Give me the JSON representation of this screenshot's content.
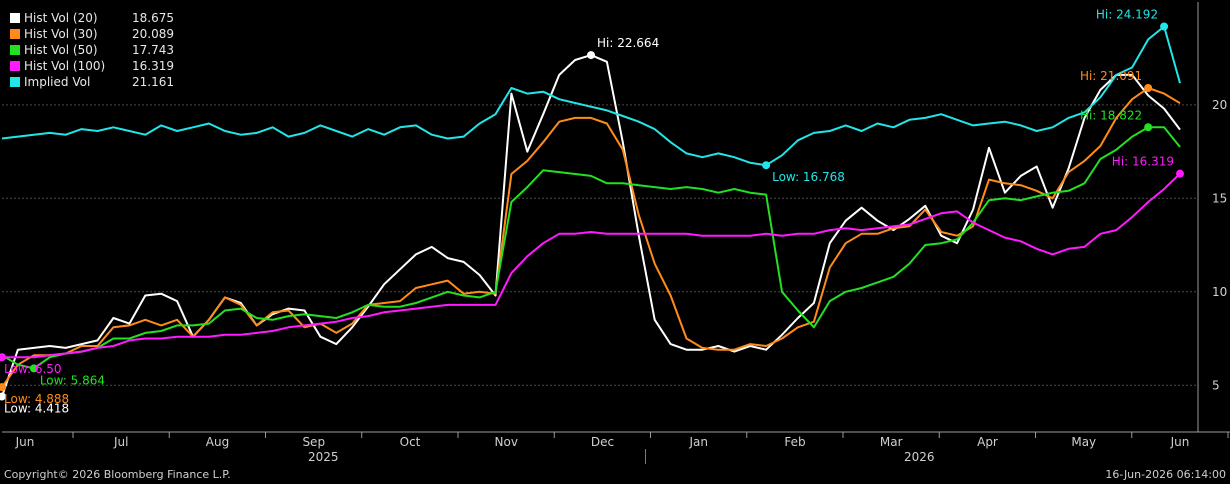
{
  "chart_data": {
    "type": "line",
    "x_ticks": [
      "Jun",
      "Jul",
      "Aug",
      "Sep",
      "Oct",
      "Nov",
      "Dec",
      "Jan",
      "Feb",
      "Mar",
      "Apr",
      "May",
      "Jun"
    ],
    "years": [
      "2025",
      "2026"
    ],
    "y_ticks": [
      5,
      10,
      15,
      20
    ],
    "ylim": [
      2.5,
      25.5
    ],
    "grid": "horizontal dashed",
    "legend_position": "top-left",
    "series": [
      {
        "name": "Hist Vol (20)",
        "last": "18.675",
        "color": "#ffffff",
        "values": [
          4.4,
          6.9,
          7.0,
          7.1,
          7.0,
          7.2,
          7.4,
          8.6,
          8.3,
          9.8,
          9.9,
          9.5,
          7.6,
          8.5,
          9.7,
          9.4,
          8.2,
          8.8,
          9.1,
          9.0,
          7.6,
          7.2,
          8.1,
          9.2,
          10.4,
          11.2,
          12.0,
          12.4,
          11.8,
          11.6,
          10.9,
          9.8,
          20.6,
          17.5,
          19.5,
          21.6,
          22.4,
          22.66,
          22.3,
          18.0,
          13.0,
          8.5,
          7.2,
          6.9,
          6.9,
          7.1,
          6.8,
          7.1,
          6.9,
          7.7,
          8.6,
          9.4,
          12.6,
          13.8,
          14.5,
          13.8,
          13.3,
          13.9,
          14.6,
          13.0,
          12.6,
          14.4,
          17.7,
          15.3,
          16.2,
          16.7,
          14.5,
          16.6,
          19.3,
          20.8,
          21.6,
          21.6,
          20.5,
          19.8,
          18.675
        ]
      },
      {
        "name": "Hist Vol (30)",
        "last": "20.089",
        "color": "#ff8c1a",
        "values": [
          4.9,
          6.1,
          6.6,
          6.6,
          6.7,
          7.1,
          7.1,
          8.1,
          8.2,
          8.5,
          8.2,
          8.5,
          7.6,
          8.5,
          9.7,
          9.3,
          8.2,
          8.9,
          9.0,
          8.1,
          8.3,
          7.8,
          8.3,
          9.3,
          9.4,
          9.5,
          10.2,
          10.4,
          10.6,
          9.9,
          10.0,
          9.9,
          16.3,
          17.0,
          18.0,
          19.1,
          19.3,
          19.3,
          19.0,
          17.6,
          14.1,
          11.5,
          9.8,
          7.5,
          7.0,
          6.9,
          6.9,
          7.2,
          7.1,
          7.5,
          8.1,
          8.4,
          11.3,
          12.6,
          13.1,
          13.1,
          13.4,
          13.5,
          14.4,
          13.2,
          13.0,
          13.5,
          16.0,
          15.8,
          15.7,
          15.4,
          15.0,
          16.4,
          17.0,
          17.8,
          19.3,
          20.3,
          20.9,
          20.6,
          20.089
        ]
      },
      {
        "name": "Hist Vol (50)",
        "last": "17.743",
        "color": "#22e022",
        "values": [
          6.6,
          6.1,
          5.9,
          6.5,
          6.7,
          6.8,
          7.0,
          7.5,
          7.5,
          7.8,
          7.9,
          8.2,
          8.2,
          8.3,
          9.0,
          9.1,
          8.6,
          8.5,
          8.7,
          8.8,
          8.7,
          8.6,
          8.9,
          9.3,
          9.2,
          9.2,
          9.4,
          9.7,
          10.0,
          9.8,
          9.7,
          10.0,
          14.8,
          15.6,
          16.5,
          16.4,
          16.3,
          16.2,
          15.8,
          15.8,
          15.7,
          15.6,
          15.5,
          15.6,
          15.5,
          15.3,
          15.5,
          15.3,
          15.2,
          10.0,
          9.0,
          8.1,
          9.5,
          10.0,
          10.2,
          10.5,
          10.8,
          11.5,
          12.5,
          12.6,
          12.8,
          13.7,
          14.9,
          15.0,
          14.9,
          15.1,
          15.3,
          15.4,
          15.8,
          17.1,
          17.6,
          18.3,
          18.8,
          18.8,
          17.743
        ]
      },
      {
        "name": "Hist Vol (100)",
        "last": "16.319",
        "color": "#ff1aff",
        "values": [
          6.5,
          6.5,
          6.5,
          6.6,
          6.7,
          6.8,
          7.0,
          7.1,
          7.4,
          7.5,
          7.5,
          7.6,
          7.6,
          7.6,
          7.7,
          7.7,
          7.8,
          7.9,
          8.1,
          8.2,
          8.3,
          8.4,
          8.6,
          8.7,
          8.9,
          9.0,
          9.1,
          9.2,
          9.3,
          9.3,
          9.3,
          9.3,
          11.0,
          11.9,
          12.6,
          13.1,
          13.1,
          13.2,
          13.1,
          13.1,
          13.1,
          13.1,
          13.1,
          13.1,
          13.0,
          13.0,
          13.0,
          13.0,
          13.1,
          13.0,
          13.1,
          13.1,
          13.3,
          13.4,
          13.3,
          13.4,
          13.5,
          13.6,
          13.9,
          14.2,
          14.3,
          13.7,
          13.3,
          12.9,
          12.7,
          12.3,
          12.0,
          12.3,
          12.4,
          13.1,
          13.3,
          14.0,
          14.8,
          15.5,
          16.319
        ]
      },
      {
        "name": "Implied Vol",
        "last": "21.161",
        "color": "#22e5e8",
        "values": [
          18.2,
          18.3,
          18.4,
          18.5,
          18.4,
          18.7,
          18.6,
          18.8,
          18.6,
          18.4,
          18.9,
          18.6,
          18.8,
          19.0,
          18.6,
          18.4,
          18.5,
          18.8,
          18.3,
          18.5,
          18.9,
          18.6,
          18.3,
          18.7,
          18.4,
          18.8,
          18.9,
          18.4,
          18.2,
          18.3,
          19.0,
          19.5,
          20.9,
          20.6,
          20.7,
          20.3,
          20.1,
          19.9,
          19.7,
          19.4,
          19.1,
          18.7,
          18.0,
          17.4,
          17.2,
          17.4,
          17.2,
          16.9,
          16.77,
          17.3,
          18.1,
          18.5,
          18.6,
          18.9,
          18.6,
          19.0,
          18.8,
          19.2,
          19.3,
          19.5,
          19.2,
          18.9,
          19.0,
          19.1,
          18.9,
          18.6,
          18.8,
          19.3,
          19.6,
          20.4,
          21.6,
          22.0,
          23.5,
          24.19,
          21.161
        ]
      }
    ],
    "annotations": [
      {
        "text": "Low: 4.418",
        "series": 0
      },
      {
        "text": "Hi: 22.664",
        "series": 0
      },
      {
        "text": "Low: 4.888",
        "series": 1
      },
      {
        "text": "Hi: 21.091",
        "series": 1
      },
      {
        "text": "Low: 5.864",
        "series": 2
      },
      {
        "text": "Hi: 18.822",
        "series": 2
      },
      {
        "text": "Low: 6.50",
        "series": 3
      },
      {
        "text": "Hi: 16.319",
        "series": 3
      },
      {
        "text": "Low: 16.768",
        "series": 4
      },
      {
        "text": "Hi: 24.192",
        "series": 4
      }
    ]
  },
  "footer": {
    "copyright": "Copyright© 2026 Bloomberg Finance L.P.",
    "timestamp": "16-Jun-2026 06:14:00"
  }
}
